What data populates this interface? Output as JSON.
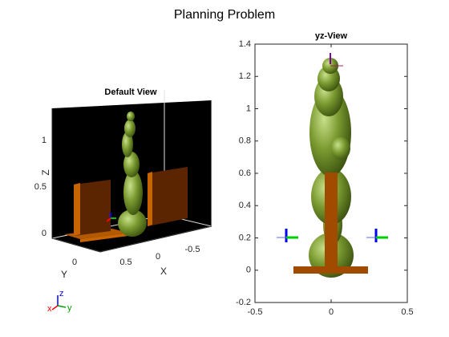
{
  "title": "Planning Problem",
  "default_view": {
    "title": "Default View",
    "xlabel": "X",
    "ylabel": "Y",
    "zlabel": "Z",
    "xticks": [
      0.5,
      0,
      -0.5
    ],
    "yticks": [
      0
    ],
    "zticks": [
      0,
      0.5,
      1
    ]
  },
  "yz_view": {
    "title": "yz-View",
    "xlim": [
      -0.5,
      0.5
    ],
    "ylim": [
      -0.2,
      1.4
    ],
    "xticks": [
      -0.5,
      0,
      0.5
    ],
    "yticks": [
      -0.2,
      0,
      0.2,
      0.4,
      0.6,
      0.8,
      1,
      1.2,
      1.4
    ]
  },
  "triad": {
    "x": "x",
    "y": "y",
    "z": "z"
  }
}
